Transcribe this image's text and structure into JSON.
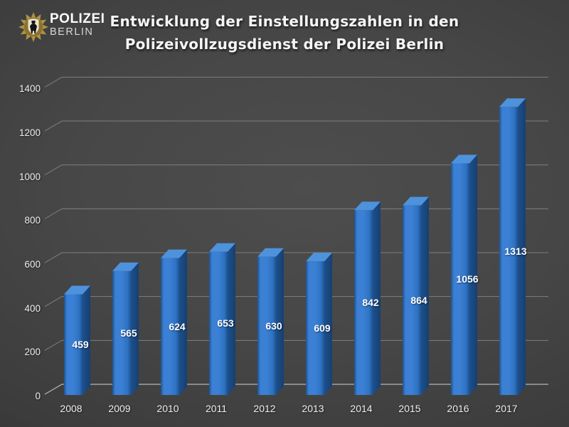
{
  "logo": {
    "badge_icon": "polizei-berlin-star-badge",
    "line1": "POLIZEI",
    "line2": "BERLIN",
    "badge_gold": "#b0923f",
    "badge_ring": "#8a7231",
    "shield_color": "#e9e2cd",
    "bear_color": "#141414"
  },
  "title": {
    "line1": "Entwicklung der Einstellungszahlen in den",
    "line2": "Polizeivollzugsdienst der Polizei Berlin"
  },
  "chart_data": {
    "type": "bar",
    "variant": "3d-column",
    "title": "Entwicklung der Einstellungszahlen in den Polizeivollzugsdienst der Polizei Berlin",
    "categories": [
      "2008",
      "2009",
      "2010",
      "2011",
      "2012",
      "2013",
      "2014",
      "2015",
      "2016",
      "2017"
    ],
    "values": [
      459,
      565,
      624,
      653,
      630,
      609,
      842,
      864,
      1056,
      1313
    ],
    "data_labels_visible": true,
    "xlabel": "",
    "ylabel": "",
    "ylim": [
      0,
      1400
    ],
    "yticks": [
      0,
      200,
      400,
      600,
      800,
      1000,
      1200,
      1400
    ],
    "grid": true,
    "legend": "none",
    "colors": {
      "bar_front": "#2e72c2",
      "bar_front_light": "#3b80d4",
      "bar_edge": "#1d5391",
      "bar_side": "#1c508d",
      "bar_top": "#4e92dc",
      "gridline": "#8d8d8d",
      "baseline": "#bdbdbd",
      "axis_text": "#ededed",
      "value_label_text": "#ffffff"
    }
  }
}
